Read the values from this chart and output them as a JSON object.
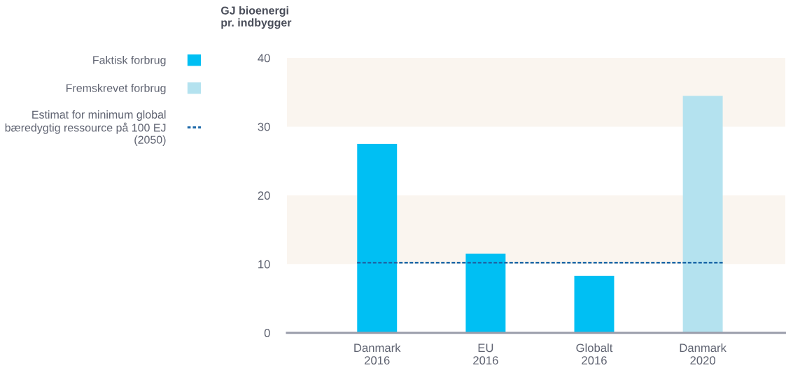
{
  "chart_data": {
    "type": "bar",
    "ylabel": "GJ bioenergi\npr. indbygger",
    "categories": [
      "Danmark\n2016",
      "EU\n2016",
      "Globalt\n2016",
      "Danmark\n2020"
    ],
    "series": [
      {
        "name": "Faktisk forbrug",
        "color": "#00bff3",
        "values": [
          27.5,
          11.5,
          8.3,
          null
        ]
      },
      {
        "name": "Fremskrevet forbrug",
        "color": "#b4e2ef",
        "values": [
          null,
          null,
          null,
          34.5
        ]
      }
    ],
    "ylim": [
      0,
      40
    ],
    "yticks": [
      0,
      10,
      20,
      30,
      40
    ],
    "bands": [
      {
        "axis": "y",
        "from": 10,
        "to": 20,
        "color": "#faf5ef"
      },
      {
        "axis": "y",
        "from": 30,
        "to": 40,
        "color": "#faf5ef"
      }
    ],
    "ref_lines": [
      {
        "axis": "y",
        "value": 10.2,
        "label": "Estimat for minimum global\nbæredygtig ressource på 100 EJ\n(2050)",
        "color": "#1c68a8",
        "line_style": "dashed"
      }
    ],
    "legend": "left",
    "grid": false
  }
}
